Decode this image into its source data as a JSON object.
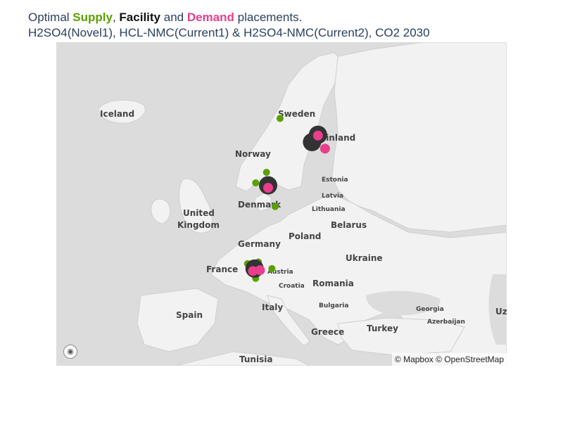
{
  "title": {
    "prefix": "Optimal ",
    "supply": "Supply",
    "sep1": ", ",
    "facility": "Facility",
    "sep2": " and ",
    "demand": "Demand",
    "suffix": " placements.",
    "subtitle": "H2SO4(Novel1), HCL-NMC(Current1) & H2SO4-NMC(Current2), CO2 2030"
  },
  "colors": {
    "supply": "#5aa000",
    "facility": "#333333",
    "demand": "#e83e8c"
  },
  "map": {
    "labels": [
      "Iceland",
      "Sweden",
      "Finland",
      "Norway",
      "Estonia",
      "Latvia",
      "Lithuania",
      "Denmark",
      "United",
      "Kingdom",
      "Belarus",
      "Poland",
      "Germany",
      "Ukraine",
      "France",
      "Austria",
      "Croatia",
      "Romania",
      "Bulgaria",
      "Spain",
      "Italy",
      "Greece",
      "Turkey",
      "Georgia",
      "Azerbaijan",
      "Tunisia",
      "Uz"
    ],
    "attribution": "© Mapbox © OpenStreetMap",
    "logo_icon": "mapbox-logo-icon"
  },
  "markers": {
    "supply": [
      {
        "lon": 13.5,
        "lat": 66.5
      },
      {
        "lon": 11.0,
        "lat": 59.9
      },
      {
        "lon": 9.0,
        "lat": 58.6
      },
      {
        "lon": 12.6,
        "lat": 55.7
      },
      {
        "lon": 7.5,
        "lat": 48.7
      },
      {
        "lon": 9.5,
        "lat": 48.9
      },
      {
        "lon": 12.0,
        "lat": 48.1
      },
      {
        "lon": 9.0,
        "lat": 46.9
      }
    ],
    "facility": [
      {
        "lon": 20.5,
        "lat": 64.5
      },
      {
        "lon": 19.4,
        "lat": 63.6
      },
      {
        "lon": 11.3,
        "lat": 58.3
      },
      {
        "lon": 8.8,
        "lat": 48.1
      }
    ],
    "demand": [
      {
        "lon": 20.5,
        "lat": 64.4
      },
      {
        "lon": 21.8,
        "lat": 62.8
      },
      {
        "lon": 11.3,
        "lat": 58.0
      },
      {
        "lon": 8.5,
        "lat": 47.8
      },
      {
        "lon": 9.8,
        "lat": 47.9
      }
    ]
  }
}
